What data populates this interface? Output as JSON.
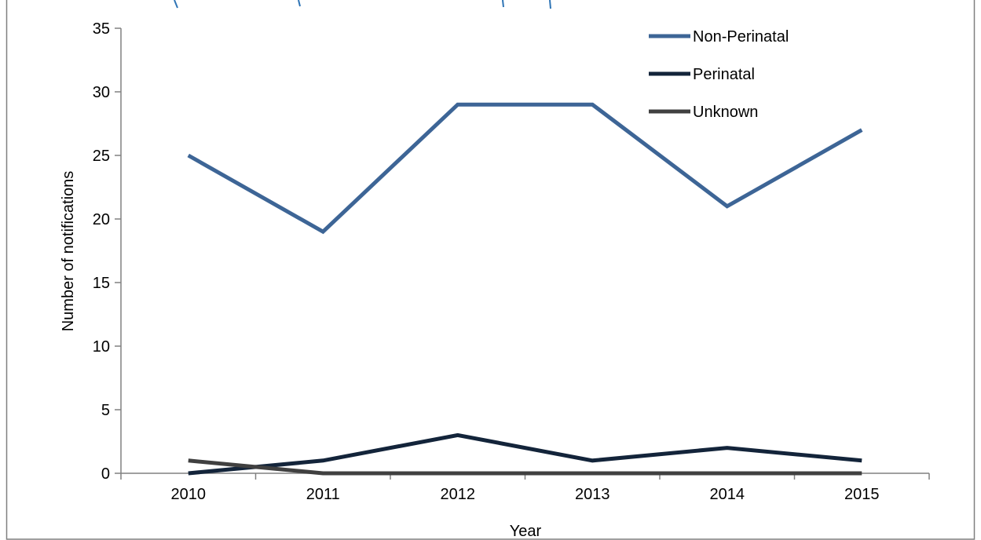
{
  "chart_data": {
    "type": "line",
    "title": "",
    "xlabel": "Year",
    "ylabel": "Number of notifications",
    "categories": [
      "2010",
      "2011",
      "2012",
      "2013",
      "2014",
      "2015"
    ],
    "ylim": [
      0,
      35
    ],
    "yticks": [
      "0",
      "5",
      "10",
      "15",
      "20",
      "25",
      "30",
      "35"
    ],
    "grid": false,
    "legend_position": "top-right",
    "series": [
      {
        "name": "Non-Perinatal",
        "values": [
          25,
          19,
          29,
          29,
          21,
          27
        ],
        "color": "#3d6596"
      },
      {
        "name": "Perinatal",
        "values": [
          0,
          1,
          3,
          1,
          2,
          1
        ],
        "color": "#13243a"
      },
      {
        "name": "Unknown",
        "values": [
          1,
          0,
          0,
          0,
          0,
          0
        ],
        "color": "#404040"
      }
    ]
  },
  "colors": {
    "title_fragment": "#2e74b5",
    "axis": "#808080",
    "frame": "#808080"
  }
}
